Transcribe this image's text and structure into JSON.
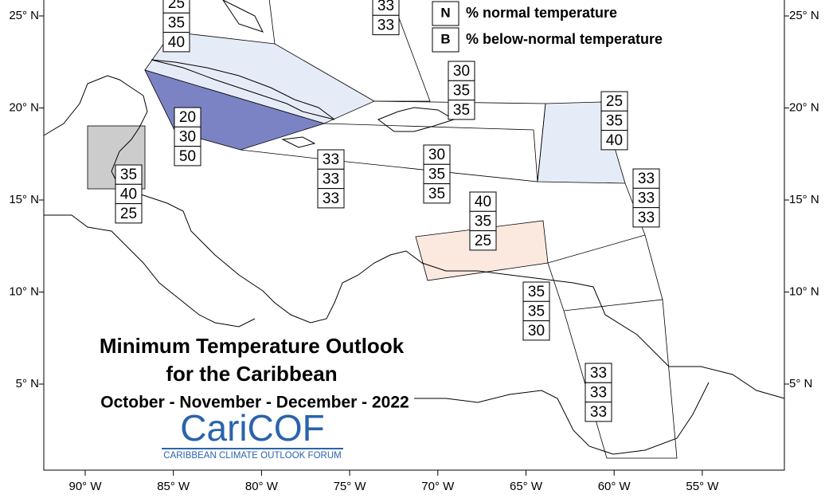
{
  "title": [
    "Minimum Temperature Outlook",
    "for the Caribbean"
  ],
  "subtitle": "October - November - December - 2022",
  "logo": {
    "name": "CariCOF",
    "tagline": "CARIBBEAN CLIMATE OUTLOOK FORUM"
  },
  "legend": [
    {
      "letter": "N",
      "text": "% normal temperature"
    },
    {
      "letter": "B",
      "text": "% below-normal temperature"
    }
  ],
  "lat_labels": [
    "25° N",
    "20° N",
    "15° N",
    "10° N",
    "5° N"
  ],
  "lon_labels": [
    "90° W",
    "85° W",
    "80° W",
    "75° W",
    "70° W",
    "65° W",
    "60° W",
    "55° W"
  ],
  "regions": [
    {
      "values": [
        25,
        35,
        40
      ]
    },
    {
      "values": [
        33,
        33
      ]
    },
    {
      "values": [
        30,
        35,
        35
      ]
    },
    {
      "values": [
        20,
        30,
        50
      ]
    },
    {
      "values": [
        25,
        35,
        40
      ]
    },
    {
      "values": [
        35,
        40,
        25
      ]
    },
    {
      "values": [
        33,
        33,
        33
      ]
    },
    {
      "values": [
        30,
        35,
        35
      ]
    },
    {
      "values": [
        33,
        33,
        33
      ]
    },
    {
      "values": [
        40,
        35,
        25
      ]
    },
    {
      "values": [
        35,
        35,
        30
      ]
    },
    {
      "values": [
        33,
        33,
        33
      ]
    }
  ]
}
